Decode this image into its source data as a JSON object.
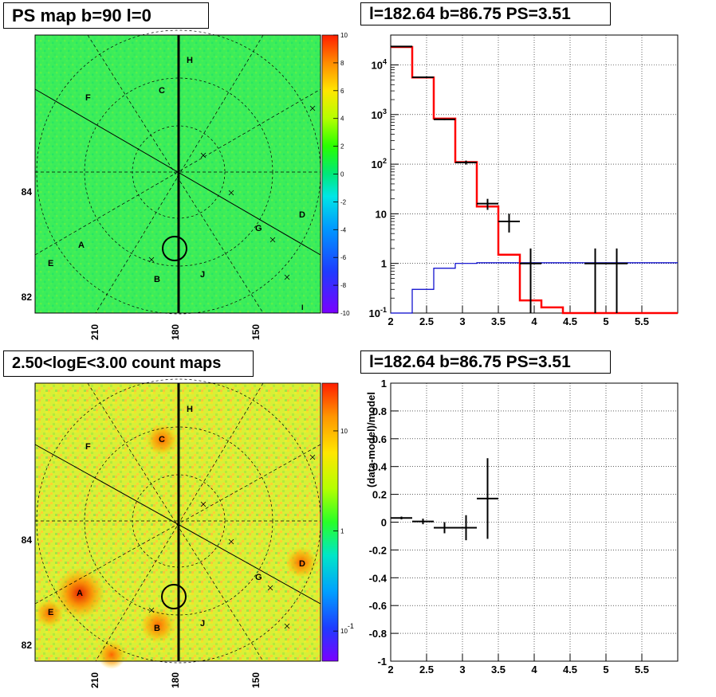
{
  "titles": {
    "ps_map": "PS map b=90 l=0",
    "spectrum": "l=182.64 b=86.75 PS=3.51",
    "count_map": "2.50<logE<3.00 count maps",
    "residual": "l=182.64 b=86.75 PS=3.51"
  },
  "colors": {
    "data": "#000000",
    "model": "#ff0000",
    "background_model": "#0000cc",
    "grid": "#000000"
  },
  "chart_data": [
    {
      "type": "heatmap",
      "title": "PS map b=90 l=0",
      "x_ticks": [
        "210",
        "180",
        "150"
      ],
      "y_ticks": [
        "84",
        "82"
      ],
      "colorbar_ticks": [
        "10",
        "8",
        "6",
        "4",
        "2",
        "0",
        "-2",
        "-4",
        "-6",
        "-8",
        "-10"
      ],
      "colorbar_range": [
        -10,
        10
      ],
      "dominant_value": 1,
      "source_labels": [
        "A",
        "B",
        "C",
        "D",
        "E",
        "F",
        "G",
        "H",
        "J",
        "I"
      ]
    },
    {
      "type": "line",
      "title": "l=182.64 b=86.75 PS=3.51",
      "xlim": [
        2,
        6
      ],
      "x_ticks": [
        "2",
        "2.5",
        "3",
        "3.5",
        "4",
        "4.5",
        "5",
        "5.5"
      ],
      "y_log": true,
      "ylim": [
        0.1,
        40000
      ],
      "y_ticks": [
        "10^{-1}",
        "1",
        "10",
        "10^{2}",
        "10^{3}",
        "10^{4}"
      ],
      "grid": true,
      "series": [
        {
          "role": "model",
          "bin_edges": [
            2.0,
            2.3,
            2.6,
            2.9,
            3.2,
            3.5,
            3.8,
            4.1,
            4.4,
            6.0
          ],
          "values": [
            23000,
            5600,
            830,
            110,
            14,
            1.5,
            0.18,
            0.13,
            0.1
          ]
        },
        {
          "role": "background_model",
          "bin_edges": [
            2.0,
            2.3,
            2.6,
            2.9,
            3.2,
            3.5,
            6.0
          ],
          "values": [
            0.1,
            0.3,
            0.8,
            1.0,
            1.03,
            1.03
          ]
        },
        {
          "role": "data",
          "points": [
            {
              "x": 2.15,
              "y": 23500,
              "xerr": 0.15,
              "ylo": 23300,
              "yhi": 23700
            },
            {
              "x": 2.45,
              "y": 5640,
              "xerr": 0.15,
              "ylo": 5560,
              "yhi": 5720
            },
            {
              "x": 2.75,
              "y": 800,
              "xerr": 0.15,
              "ylo": 772,
              "yhi": 828
            },
            {
              "x": 3.05,
              "y": 108,
              "xerr": 0.15,
              "ylo": 98,
              "yhi": 118
            },
            {
              "x": 3.35,
              "y": 16,
              "xerr": 0.15,
              "ylo": 12,
              "yhi": 20
            },
            {
              "x": 3.65,
              "y": 7,
              "xerr": 0.15,
              "ylo": 4.2,
              "yhi": 10
            },
            {
              "x": 3.95,
              "y": 1,
              "xerr": 0.15,
              "ylo": 0.1,
              "yhi": 2
            },
            {
              "x": 4.85,
              "y": 1,
              "xerr": 0.15,
              "ylo": 0.1,
              "yhi": 2
            },
            {
              "x": 5.15,
              "y": 1,
              "xerr": 0.15,
              "ylo": 0.1,
              "yhi": 2
            }
          ]
        }
      ]
    },
    {
      "type": "heatmap",
      "title": "2.50<logE<3.00 count maps",
      "x_ticks": [
        "210",
        "180",
        "150"
      ],
      "y_ticks": [
        "84",
        "82"
      ],
      "colorbar_log": true,
      "colorbar_ticks": [
        "10",
        "1",
        "10^{-1}"
      ],
      "colorbar_range": [
        0.05,
        30
      ],
      "source_labels": [
        "A",
        "B",
        "C",
        "D",
        "E",
        "F",
        "G",
        "H",
        "J"
      ]
    },
    {
      "type": "scatter",
      "title": "l=182.64 b=86.75 PS=3.51",
      "ylabel": "(data-model)/model",
      "xlim": [
        2,
        6
      ],
      "ylim": [
        -1,
        1
      ],
      "x_ticks": [
        "2",
        "2.5",
        "3",
        "3.5",
        "4",
        "4.5",
        "5",
        "5.5"
      ],
      "y_ticks": [
        "1",
        "0.8",
        "0.6",
        "0.4",
        "0.2",
        "0",
        "-0.2",
        "-0.4",
        "-0.6",
        "-0.8",
        "-1"
      ],
      "grid": true,
      "points": [
        {
          "x": 2.15,
          "y": 0.03,
          "xerr": 0.15,
          "ylo": 0.02,
          "yhi": 0.04
        },
        {
          "x": 2.45,
          "y": 0.005,
          "xerr": 0.15,
          "ylo": -0.015,
          "yhi": 0.025
        },
        {
          "x": 2.75,
          "y": -0.04,
          "xerr": 0.15,
          "ylo": -0.08,
          "yhi": 0.0
        },
        {
          "x": 3.05,
          "y": -0.04,
          "xerr": 0.15,
          "ylo": -0.13,
          "yhi": 0.05
        },
        {
          "x": 3.35,
          "y": 0.17,
          "xerr": 0.15,
          "ylo": -0.12,
          "yhi": 0.46
        }
      ]
    }
  ]
}
